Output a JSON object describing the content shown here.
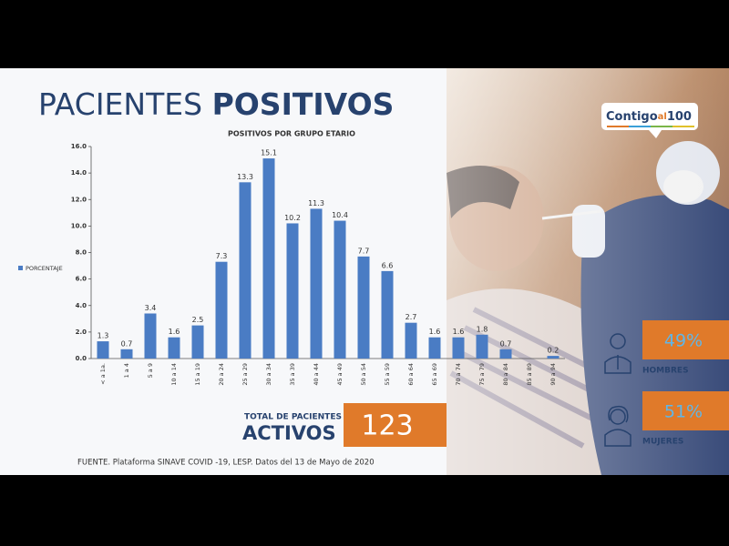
{
  "header": {
    "title_light": "PACIENTES",
    "title_bold": "POSITIVOS"
  },
  "chart_data": {
    "type": "bar",
    "title": "POSITIVOS POR GRUPO ETARIO",
    "categories": [
      "< a 1a.",
      "1 a 4",
      "5 a 9",
      "10 a 14",
      "15 a 19",
      "20 a 24",
      "25 a 29",
      "30 a 34",
      "35 a 39",
      "40 a 44",
      "45 a 49",
      "50 a 54",
      "55 a 59",
      "60 a 64",
      "65 a 69",
      "70 a 74",
      "75 a 79",
      "80 a 84",
      "85 a 89",
      "90 a 94"
    ],
    "series": [
      {
        "name": "PORCENTAJE",
        "color": "#4a7cc4",
        "values": [
          1.3,
          0.7,
          3.4,
          1.6,
          2.5,
          7.3,
          13.3,
          15.1,
          10.2,
          11.3,
          10.4,
          7.7,
          6.6,
          2.7,
          1.6,
          1.6,
          1.8,
          0.7,
          null,
          0.2
        ]
      }
    ],
    "ylim": [
      0,
      16
    ],
    "yticks": [
      {
        "value": 0,
        "label": "0.0"
      },
      {
        "value": 2,
        "label": "2.0"
      },
      {
        "value": 4,
        "label": "4.0"
      },
      {
        "value": 6,
        "label": "6.0"
      },
      {
        "value": 8,
        "label": "8.0"
      },
      {
        "value": 10,
        "label": "10.0"
      },
      {
        "value": 12,
        "label": "12.0"
      },
      {
        "value": 14,
        "label": "14.0"
      },
      {
        "value": 16,
        "label": "16.0"
      }
    ],
    "grid": false,
    "legend": "left"
  },
  "summary": {
    "label": "TOTAL DE PACIENTES",
    "label_bold": "ACTIVOS",
    "value": "123"
  },
  "source": "FUENTE. Plataforma SINAVE COVID -19, LESP. Datos del 13 de Mayo de 2020",
  "logo": {
    "part1": "Contigo",
    "part2": "al",
    "part3": "100"
  },
  "gender": [
    {
      "percent": "49%",
      "label": "HOMBRES"
    },
    {
      "percent": "51%",
      "label": "MUJERES"
    }
  ]
}
